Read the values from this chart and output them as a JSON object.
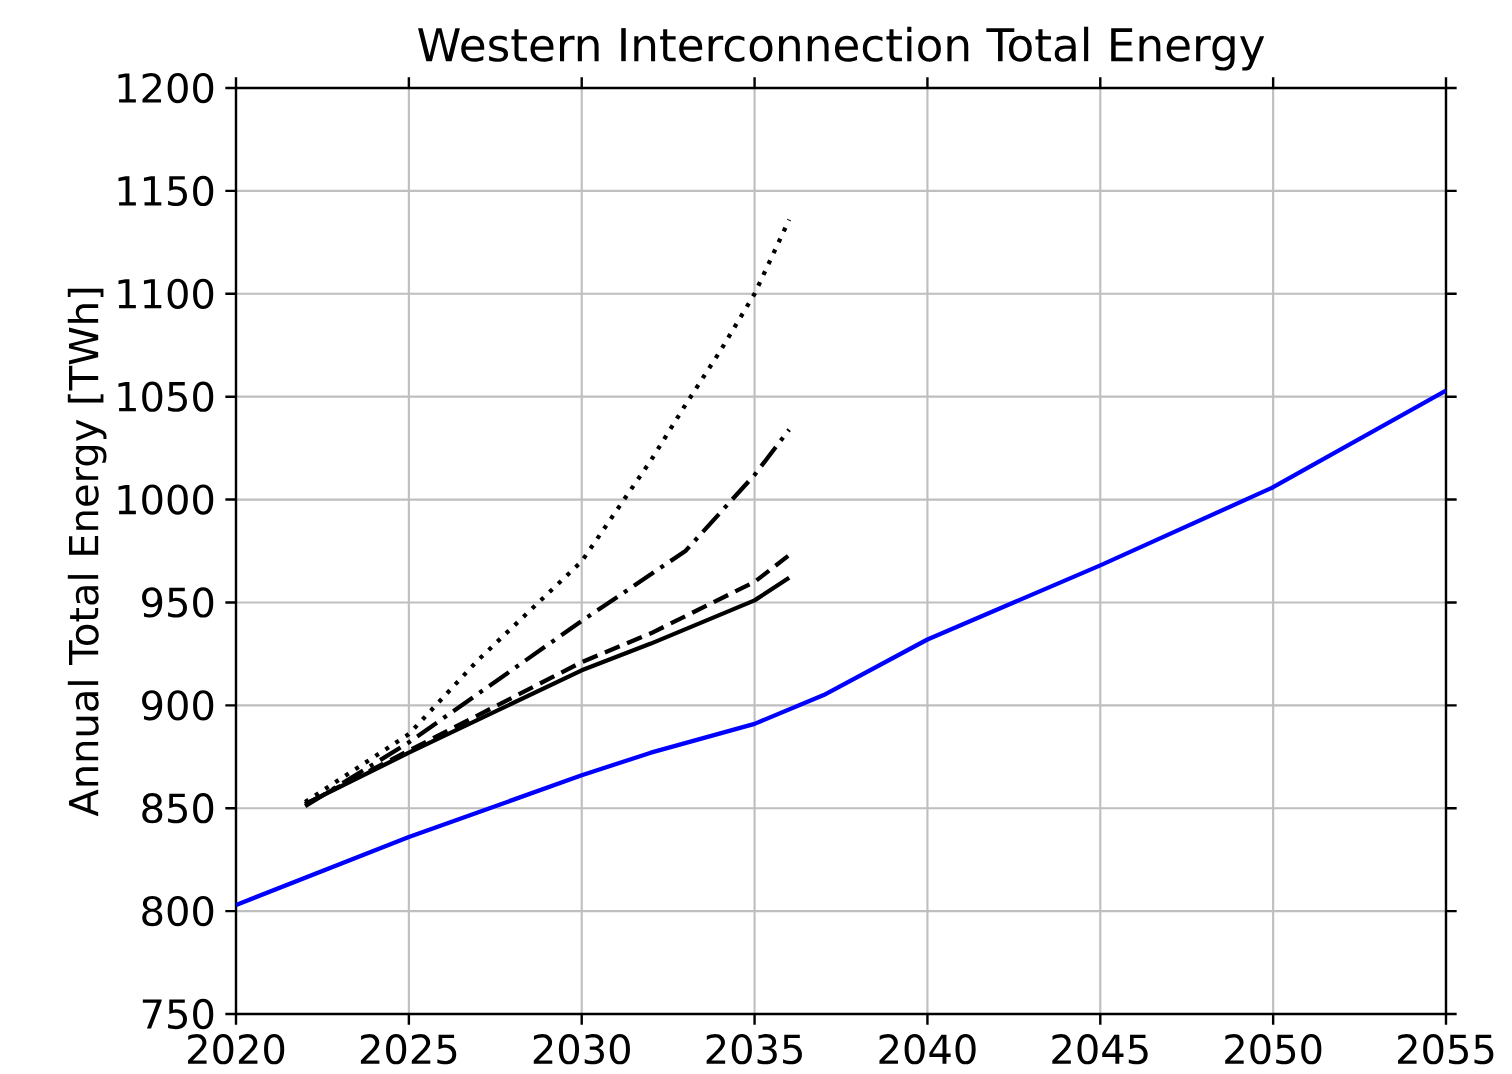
{
  "chart_data": {
    "type": "line",
    "title": "Western Interconnection Total Energy",
    "ylabel": "Annual Total Energy [TWh]",
    "xlim": [
      2020,
      2055
    ],
    "xticks": [
      2020,
      2025,
      2030,
      2035,
      2040,
      2045,
      2050,
      2055
    ],
    "ylim": [
      750,
      1200
    ],
    "yticks": [
      750,
      800,
      850,
      900,
      950,
      1000,
      1050,
      1100,
      1150,
      1200
    ],
    "grid": true,
    "marker": "none",
    "series": [
      {
        "color": "#0000ff",
        "line_style": "solid",
        "x": [
          2020,
          2025,
          2030,
          2032,
          2035,
          2037,
          2040,
          2045,
          2050,
          2055
        ],
        "values": [
          803,
          836,
          866,
          877,
          891,
          905,
          932,
          968,
          1006,
          1053
        ]
      },
      {
        "color": "#000000",
        "line_style": "solid",
        "x": [
          2022,
          2025,
          2030,
          2032,
          2035,
          2036
        ],
        "values": [
          852,
          877,
          917,
          930,
          951,
          962
        ]
      },
      {
        "color": "#000000",
        "line_style": "dashed",
        "x": [
          2022,
          2025,
          2030,
          2032,
          2035,
          2036
        ],
        "values": [
          852,
          878,
          921,
          935,
          960,
          973
        ]
      },
      {
        "color": "#000000",
        "line_style": "dashdot",
        "x": [
          2022,
          2025,
          2030,
          2033,
          2035,
          2036
        ],
        "values": [
          851,
          882,
          941,
          975,
          1012,
          1034
        ]
      },
      {
        "color": "#000000",
        "line_style": "dotted",
        "x": [
          2022,
          2025,
          2027,
          2030,
          2032,
          2033,
          2034,
          2035,
          2036
        ],
        "values": [
          853,
          886,
          922,
          970,
          1019,
          1046,
          1072,
          1100,
          1136
        ]
      }
    ]
  }
}
